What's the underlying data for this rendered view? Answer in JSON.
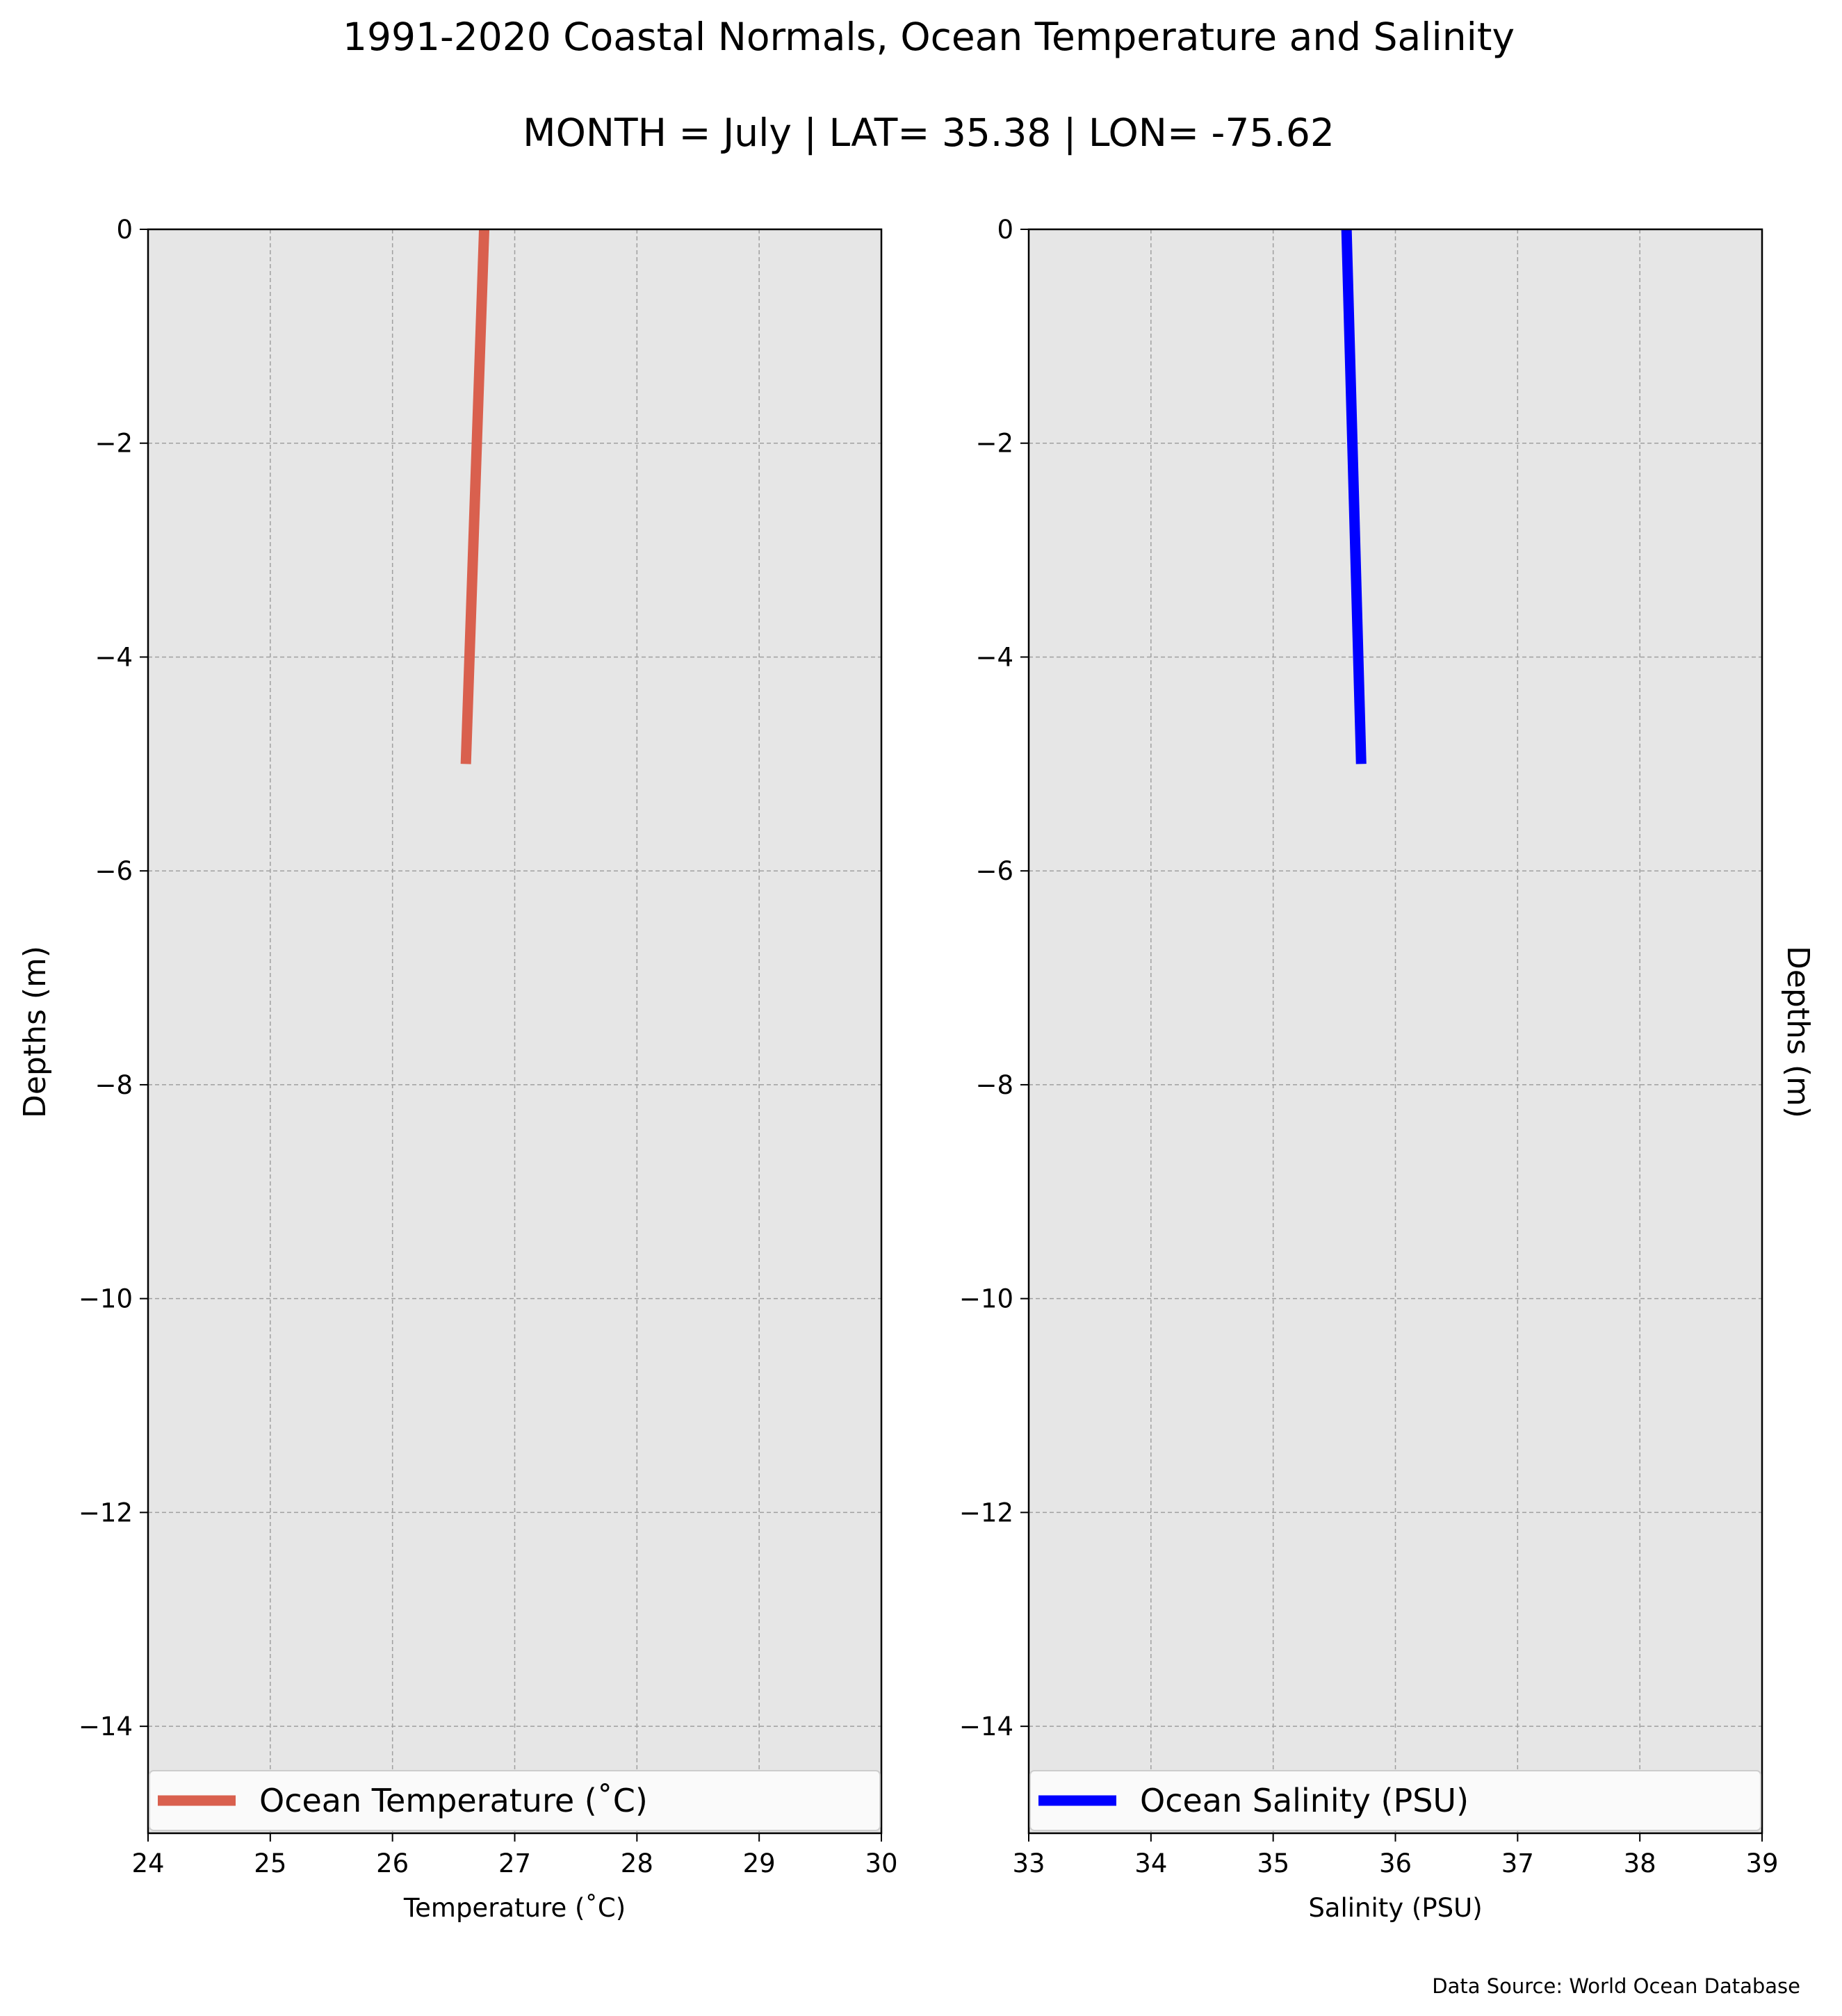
{
  "title": "1991-2020 Coastal Normals, Ocean Temperature and Salinity",
  "subtitle": "MONTH = July | LAT= 35.38 | LON= -75.62",
  "source": "Data Source: World Ocean Database",
  "chart_data": [
    {
      "type": "line",
      "xlabel": "Temperature ($^\\circ$C)",
      "xlabel_display": "Temperature (˚C)",
      "ylabel": "Depths (m)",
      "xlim": [
        24,
        30
      ],
      "ylim": [
        -15,
        0
      ],
      "xticks": [
        "24",
        "25",
        "26",
        "27",
        "28",
        "29",
        "30"
      ],
      "yticks": [
        "0",
        "−2",
        "−4",
        "−6",
        "−8",
        "−10",
        "−12",
        "−14"
      ],
      "grid": true,
      "legend_position": "lower center",
      "series": [
        {
          "name": "Ocean Temperature (˚C)",
          "color": "#d9604e",
          "x": [
            26.75,
            26.6
          ],
          "y": [
            0,
            -5
          ]
        }
      ]
    },
    {
      "type": "line",
      "xlabel": "Salinity (PSU)",
      "xlabel_display": "Salinity (PSU)",
      "ylabel": "Depths (m)",
      "xlim": [
        33,
        39
      ],
      "ylim": [
        -15,
        0
      ],
      "xticks": [
        "33",
        "34",
        "35",
        "36",
        "37",
        "38",
        "39"
      ],
      "yticks": [
        "0",
        "−2",
        "−4",
        "−6",
        "−8",
        "−10",
        "−12",
        "−14"
      ],
      "grid": true,
      "legend_position": "lower center",
      "series": [
        {
          "name": "Ocean Salinity (PSU)",
          "color": "#0000ff",
          "x": [
            35.6,
            35.72
          ],
          "y": [
            0,
            -5
          ]
        }
      ]
    }
  ],
  "colors": {
    "axes_background": "#e6e6e6",
    "grid": "#a0a0a0"
  }
}
